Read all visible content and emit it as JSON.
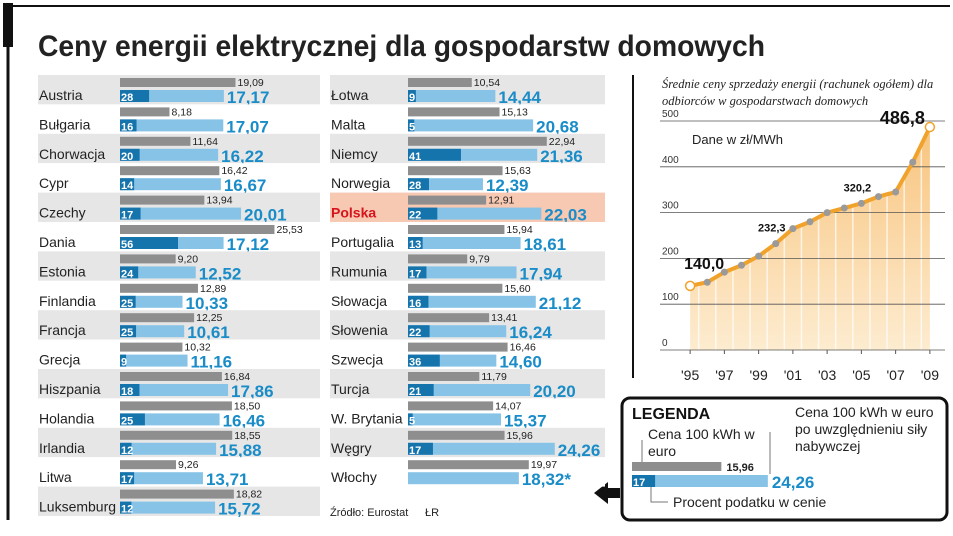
{
  "title": "Ceny energii elektrycznej dla gospodarstw domowych",
  "source": "Źródło: Eurostat",
  "credit": "ŁR",
  "chart_data": [
    {
      "type": "bar",
      "categories": [
        "Austria",
        "Bułgaria",
        "Chorwacja",
        "Cypr",
        "Czechy",
        "Dania",
        "Estonia",
        "Finlandia",
        "Francja",
        "Grecja",
        "Hiszpania",
        "Holandia",
        "Irlandia",
        "Litwa",
        "Luksemburg",
        "Łotwa",
        "Malta",
        "Niemcy",
        "Norwegia",
        "Polska",
        "Portugalia",
        "Rumunia",
        "Słowacja",
        "Słowenia",
        "Szwecja",
        "Turcja",
        "W. Brytania",
        "Węgry",
        "Włochy"
      ],
      "highlight": "Polska",
      "series": [
        {
          "name": "Cena 100 kWh w euro",
          "color": "#8e8e8e",
          "values": [
            19.09,
            8.18,
            11.64,
            16.42,
            13.94,
            25.53,
            9.2,
            12.89,
            12.25,
            10.32,
            16.84,
            18.5,
            18.55,
            9.26,
            18.82,
            10.54,
            15.13,
            22.94,
            15.63,
            12.91,
            15.94,
            9.79,
            15.6,
            13.41,
            16.46,
            11.79,
            14.07,
            15.96,
            19.97
          ],
          "value_labels": [
            "19,09",
            "8,18",
            "11,64",
            "16,42",
            "13,94",
            "25,53",
            "9,20",
            "12,89",
            "12,25",
            "10,32",
            "16,84",
            "18,50",
            "18,55",
            "9,26",
            "18,82",
            "10,54",
            "15,13",
            "22,94",
            "15,63",
            "12,91",
            "15,94",
            "9,79",
            "15,60",
            "13,41",
            "16,46",
            "11,79",
            "14,07",
            "15,96",
            "19,97"
          ]
        },
        {
          "name": "Cena 100 kWh w euro po uwzględnieniu siły nabywczej",
          "color": "#86c3e6",
          "values": [
            17.17,
            17.07,
            16.22,
            16.67,
            20.01,
            17.12,
            12.52,
            10.33,
            10.61,
            11.16,
            17.86,
            16.46,
            15.88,
            13.71,
            15.72,
            14.44,
            20.68,
            21.36,
            12.39,
            22.03,
            18.61,
            17.94,
            21.12,
            16.24,
            14.6,
            20.2,
            15.37,
            24.26,
            18.32
          ],
          "value_labels": [
            "17,17",
            "17,07",
            "16,22",
            "16,67",
            "20,01",
            "17,12",
            "12,52",
            "10,33",
            "10,61",
            "11,16",
            "17,86",
            "16,46",
            "15,88",
            "13,71",
            "15,72",
            "14,44",
            "20,68",
            "21,36",
            "12,39",
            "22,03",
            "18,61",
            "17,94",
            "21,12",
            "16,24",
            "14,60",
            "20,20",
            "15,37",
            "24,26",
            "18,32*"
          ]
        },
        {
          "name": "Procent podatku w cenie",
          "color": "#1674ad",
          "values": [
            28,
            16,
            20,
            14,
            17,
            56,
            24,
            25,
            25,
            9,
            18,
            25,
            12,
            17,
            12,
            9,
            5,
            41,
            28,
            22,
            13,
            17,
            16,
            22,
            36,
            21,
            5,
            17,
            null
          ]
        }
      ],
      "legend": {
        "title": "LEGENDA",
        "example": {
          "values": [
            15.96,
            24.26,
            17
          ],
          "value_labels": [
            "15,96",
            "24,26",
            "17"
          ]
        }
      }
    },
    {
      "type": "line",
      "subtitle": "Średnie ceny sprzedaży energii (rachunek ogółem) dla odbiorców w gospodarstwach domowych",
      "annotation": "Dane w zł/MWh",
      "x": [
        1995,
        1996,
        1997,
        1998,
        1999,
        2000,
        2001,
        2002,
        2003,
        2004,
        2005,
        2006,
        2007,
        2008,
        2009
      ],
      "series": [
        {
          "color": "#f0a22a",
          "values": [
            140.0,
            148,
            170,
            185,
            205,
            232.3,
            265,
            280,
            300,
            310,
            320.2,
            335,
            345,
            410,
            486.8
          ],
          "value_labels": [
            "140,0",
            null,
            null,
            null,
            null,
            "232,3",
            null,
            null,
            null,
            null,
            "320,2",
            null,
            null,
            null,
            "486,8"
          ]
        }
      ],
      "xlim": [
        1994,
        2010
      ],
      "xticks": [
        {
          "value": 1995,
          "label": "'95"
        },
        {
          "value": 1997,
          "label": "'97"
        },
        {
          "value": 1999,
          "label": "'99"
        },
        {
          "value": 2001,
          "label": "'01"
        },
        {
          "value": 2003,
          "label": "'03"
        },
        {
          "value": 2005,
          "label": "'05"
        },
        {
          "value": 2007,
          "label": "'07"
        },
        {
          "value": 2009,
          "label": "'09"
        }
      ],
      "ylim": [
        0,
        500
      ],
      "yticks": [
        0,
        100,
        200,
        300,
        400,
        500
      ],
      "grid": true
    }
  ]
}
